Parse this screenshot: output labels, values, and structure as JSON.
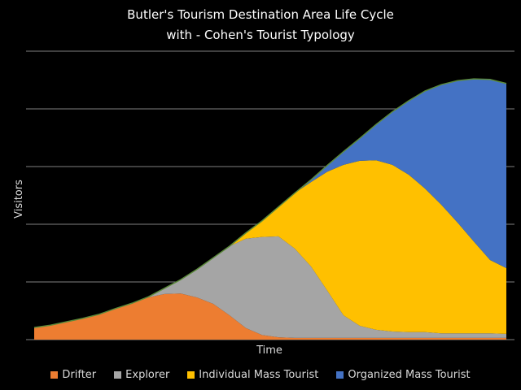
{
  "chart_data": {
    "type": "area",
    "stacked": true,
    "title": "Butler's Tourism Destination Area Life Cycle",
    "subtitle": "with - Cohen's Tourist Typology",
    "xlabel": "Time",
    "ylabel": "Visitors",
    "ylim": [
      0,
      5
    ],
    "grid": true,
    "legend": "bottom",
    "series": [
      {
        "name": "Drifter",
        "color": "#ed7d31",
        "values": [
          0.21,
          0.25,
          0.31,
          0.37,
          0.44,
          0.54,
          0.63,
          0.73,
          0.79,
          0.8,
          0.73,
          0.62,
          0.42,
          0.2,
          0.08,
          0.04,
          0.03,
          0.03,
          0.03,
          0.03,
          0.03,
          0.03,
          0.03,
          0.03,
          0.03,
          0.03,
          0.03,
          0.03,
          0.03,
          0.03
        ]
      },
      {
        "name": "Explorer",
        "color": "#a5a5a5",
        "values": [
          0,
          0,
          0,
          0,
          0,
          0,
          0,
          0.01,
          0.1,
          0.24,
          0.49,
          0.8,
          1.2,
          1.55,
          1.7,
          1.75,
          1.55,
          1.24,
          0.82,
          0.39,
          0.21,
          0.14,
          0.11,
          0.1,
          0.1,
          0.08,
          0.08,
          0.08,
          0.08,
          0.07
        ]
      },
      {
        "name": "Individual Mass Tourist",
        "color": "#ffc000",
        "values": [
          0,
          0,
          0,
          0,
          0,
          0,
          0,
          0,
          0,
          0,
          0,
          0,
          0,
          0.1,
          0.28,
          0.51,
          0.96,
          1.46,
          2.06,
          2.61,
          2.86,
          2.94,
          2.89,
          2.73,
          2.49,
          2.23,
          1.92,
          1.59,
          1.27,
          1.14
        ]
      },
      {
        "name": "Organized Mass Tourist",
        "color": "#4472c4",
        "values": [
          0,
          0,
          0,
          0,
          0,
          0,
          0,
          0,
          0,
          0,
          0,
          0,
          0,
          0,
          0,
          0,
          0,
          0.04,
          0.11,
          0.23,
          0.39,
          0.62,
          0.92,
          1.28,
          1.69,
          2.08,
          2.46,
          2.82,
          3.13,
          3.2
        ]
      }
    ],
    "outline_color": "#5b8a3a",
    "grid_color": "#7f7f7f"
  }
}
